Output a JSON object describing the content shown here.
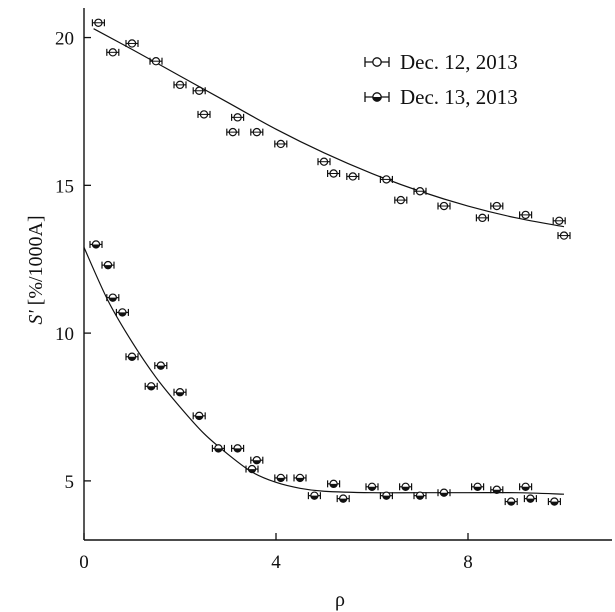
{
  "chart_data": {
    "type": "scatter",
    "title": "",
    "xlabel": "ρ",
    "ylabel_symbol": "S'",
    "ylabel_unit": " [%/1000A]",
    "xlim": [
      0,
      11.0
    ],
    "ylim": [
      3.0,
      21.0
    ],
    "xticks": [
      0,
      4,
      8
    ],
    "xtick_labels": [
      "0",
      "4",
      "8"
    ],
    "yticks": [
      5,
      10,
      15,
      20
    ],
    "ytick_labels": [
      "5",
      "10",
      "15",
      "20"
    ],
    "grid": false,
    "legend_position": "top-right",
    "series": [
      {
        "name": "Dec. 12, 2013",
        "marker": "open-circle-with-errorbar",
        "x": [
          0.3,
          0.6,
          1.0,
          1.5,
          2.0,
          2.4,
          2.5,
          3.1,
          3.2,
          3.6,
          4.1,
          5.0,
          5.2,
          5.6,
          6.3,
          6.6,
          7.0,
          7.5,
          8.3,
          8.6,
          9.2,
          9.9,
          10.0
        ],
        "y": [
          20.5,
          19.5,
          19.8,
          19.2,
          18.4,
          18.2,
          17.4,
          16.8,
          17.3,
          16.8,
          16.4,
          15.8,
          15.4,
          15.3,
          15.2,
          14.5,
          14.8,
          14.3,
          13.9,
          14.3,
          14.0,
          13.8,
          13.3
        ],
        "fit_x": [
          0.2,
          1.0,
          2.0,
          3.0,
          4.0,
          5.0,
          6.0,
          7.0,
          8.0,
          9.0,
          10.0
        ],
        "fit_y": [
          20.3,
          19.6,
          18.7,
          17.8,
          16.9,
          16.1,
          15.4,
          14.8,
          14.3,
          13.9,
          13.6
        ]
      },
      {
        "name": "Dec. 13, 2013",
        "marker": "half-filled-circle-with-errorbar",
        "x": [
          0.25,
          0.5,
          0.6,
          0.8,
          1.0,
          1.4,
          1.6,
          2.0,
          2.4,
          2.8,
          3.2,
          3.5,
          3.6,
          4.1,
          4.5,
          4.8,
          5.2,
          5.4,
          6.0,
          6.3,
          6.7,
          7.0,
          7.5,
          8.2,
          8.6,
          8.9,
          9.2,
          9.3,
          9.8
        ],
        "y": [
          13.0,
          12.3,
          11.2,
          10.7,
          9.2,
          8.2,
          8.9,
          8.0,
          7.2,
          6.1,
          6.1,
          5.4,
          5.7,
          5.1,
          5.1,
          4.5,
          4.9,
          4.4,
          4.8,
          4.5,
          4.8,
          4.5,
          4.6,
          4.8,
          4.7,
          4.3,
          4.8,
          4.4,
          4.3
        ],
        "fit_x": [
          0.0,
          0.5,
          1.0,
          1.5,
          2.0,
          2.5,
          3.0,
          3.5,
          4.0,
          4.5,
          5.0,
          6.0,
          7.0,
          8.0,
          9.0,
          10.0
        ],
        "fit_y": [
          12.9,
          11.1,
          9.7,
          8.5,
          7.5,
          6.6,
          5.9,
          5.3,
          4.95,
          4.75,
          4.65,
          4.6,
          4.6,
          4.6,
          4.6,
          4.55
        ]
      }
    ]
  }
}
